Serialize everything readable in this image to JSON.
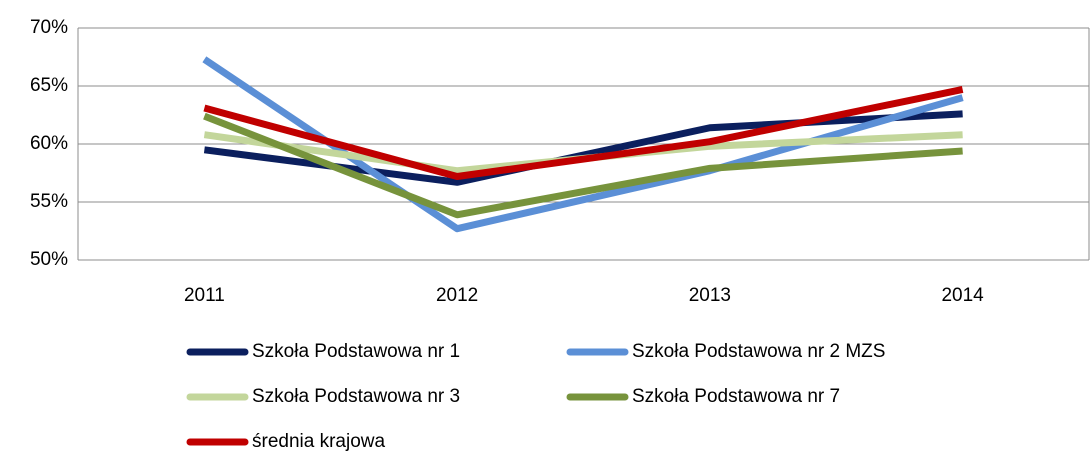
{
  "chart_data": {
    "type": "line",
    "categories": [
      "2011",
      "2012",
      "2013",
      "2014"
    ],
    "series": [
      {
        "name": "Szkoła Podstawowa nr 1",
        "color": "#0b1f5e",
        "values": [
          59.5,
          56.7,
          61.4,
          62.6
        ]
      },
      {
        "name": "Szkoła Podstawowa nr 2 MZS",
        "color": "#5b8fd6",
        "values": [
          67.3,
          52.7,
          57.7,
          64.0
        ]
      },
      {
        "name": "Szkoła Podstawowa nr 3",
        "color": "#c3d69b",
        "values": [
          60.8,
          57.7,
          59.8,
          60.8
        ]
      },
      {
        "name": "Szkoła Podstawowa nr 7",
        "color": "#77933c",
        "values": [
          62.4,
          53.9,
          57.9,
          59.4
        ]
      },
      {
        "name": "średnia krajowa",
        "color": "#c00000",
        "values": [
          63.1,
          57.2,
          60.2,
          64.7
        ]
      }
    ],
    "ylim": [
      50,
      70
    ],
    "yticks": [
      {
        "value": 50,
        "label": "50%"
      },
      {
        "value": 55,
        "label": "55%"
      },
      {
        "value": 60,
        "label": "60%"
      },
      {
        "value": 65,
        "label": "65%"
      },
      {
        "value": 70,
        "label": "70%"
      }
    ],
    "grid": true
  }
}
